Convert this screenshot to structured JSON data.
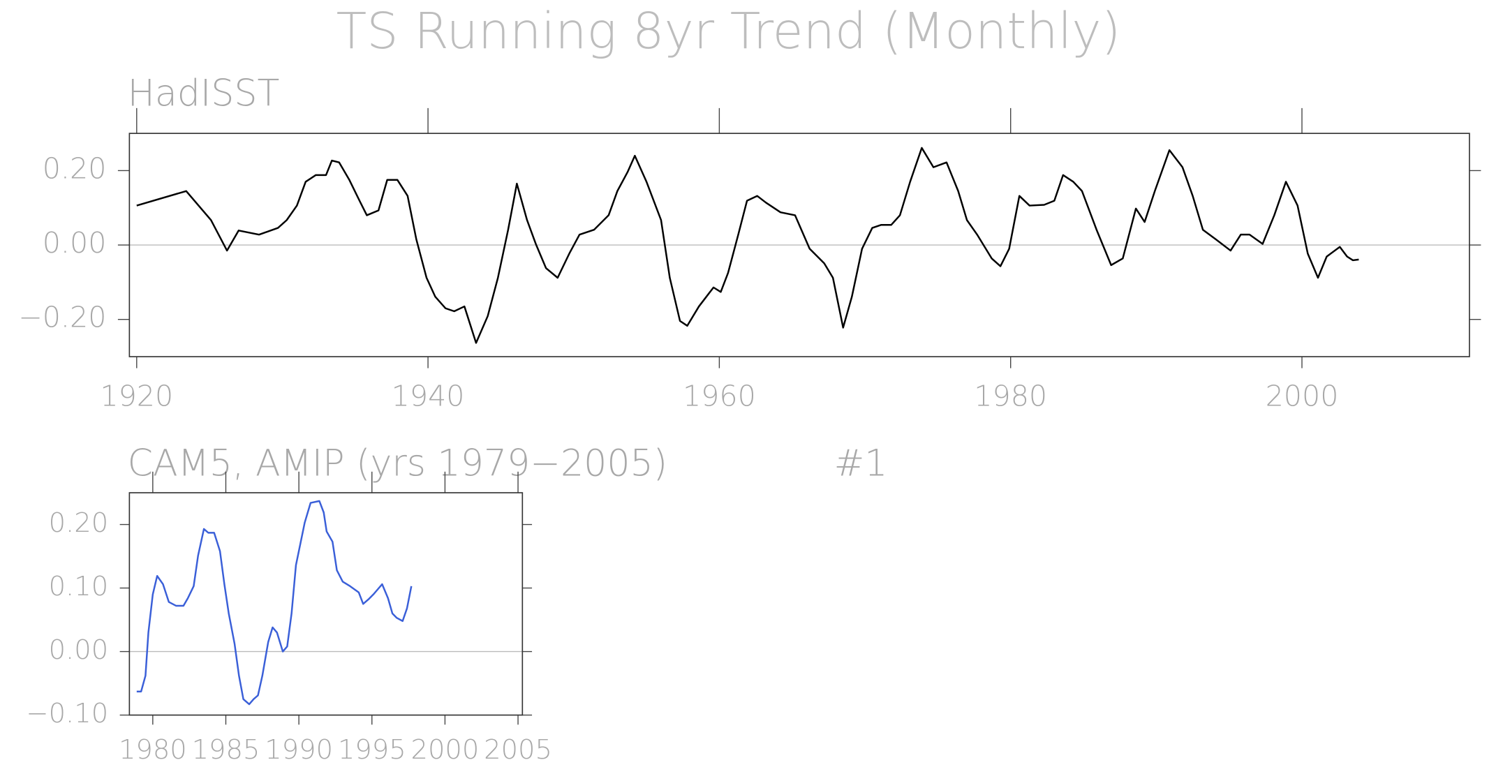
{
  "title": "TS Running 8yr Trend (Monthly)",
  "chart_data": [
    {
      "type": "line",
      "subtitle": "HadISST",
      "xlim": [
        1919.5,
        2011.5
      ],
      "xticks": [
        1920,
        1940,
        1960,
        1980,
        2000
      ],
      "ylim": [
        -0.3,
        0.3
      ],
      "yticks": [
        {
          "value": -0.2,
          "label": "−0.20"
        },
        {
          "value": 0,
          "label": "0.00"
        },
        {
          "value": 0.2,
          "label": "0.20"
        }
      ],
      "zero_line": true,
      "series": [
        {
          "color": "#000000",
          "x": [
            1920.0,
            1923.4,
            1925.1,
            1926.2,
            1927.0,
            1928.4,
            1929.7,
            1930.3,
            1931.0,
            1931.6,
            1932.3,
            1933.0,
            1933.4,
            1933.9,
            1934.6,
            1935.3,
            1935.8,
            1936.6,
            1937.2,
            1937.9,
            1938.6,
            1939.2,
            1939.9,
            1940.5,
            1941.2,
            1941.8,
            1942.5,
            1943.3,
            1944.1,
            1944.8,
            1945.5,
            1946.1,
            1946.8,
            1947.4,
            1948.1,
            1948.9,
            1949.7,
            1950.4,
            1951.4,
            1952.4,
            1953.0,
            1953.7,
            1954.2,
            1955.0,
            1956.0,
            1956.6,
            1957.3,
            1957.8,
            1958.6,
            1959.6,
            1960.1,
            1960.6,
            1961.3,
            1961.9,
            1962.6,
            1963.2,
            1964.2,
            1965.2,
            1966.2,
            1967.2,
            1967.8,
            1968.5,
            1969.1,
            1969.8,
            1970.5,
            1971.1,
            1971.8,
            1972.4,
            1973.1,
            1973.9,
            1974.7,
            1975.6,
            1976.4,
            1977.0,
            1977.7,
            1978.7,
            1979.3,
            1979.9,
            1980.6,
            1981.3,
            1982.3,
            1983.0,
            1983.6,
            1984.3,
            1984.9,
            1985.9,
            1986.9,
            1987.7,
            1988.6,
            1989.2,
            1989.9,
            1990.9,
            1991.8,
            1992.5,
            1993.2,
            1994.1,
            1995.1,
            1995.8,
            1996.4,
            1997.3,
            1998.1,
            1998.9,
            1999.7,
            2000.4,
            2001.1,
            2001.7,
            2002.6,
            2003.1,
            2003.5,
            2003.9
          ],
          "values": [
            0.106,
            0.145,
            0.067,
            -0.015,
            0.039,
            0.028,
            0.046,
            0.067,
            0.106,
            0.17,
            0.188,
            0.188,
            0.227,
            0.222,
            0.175,
            0.119,
            0.08,
            0.093,
            0.175,
            0.175,
            0.132,
            0.015,
            -0.088,
            -0.139,
            -0.17,
            -0.178,
            -0.165,
            -0.263,
            -0.191,
            -0.088,
            0.041,
            0.165,
            0.067,
            0.003,
            -0.062,
            -0.088,
            -0.023,
            0.028,
            0.041,
            0.08,
            0.145,
            0.196,
            0.24,
            0.17,
            0.067,
            -0.088,
            -0.204,
            -0.217,
            -0.165,
            -0.114,
            -0.126,
            -0.075,
            0.028,
            0.119,
            0.132,
            0.114,
            0.088,
            0.08,
            -0.01,
            -0.049,
            -0.088,
            -0.222,
            -0.139,
            -0.01,
            0.046,
            0.054,
            0.054,
            0.08,
            0.17,
            0.261,
            0.209,
            0.222,
            0.145,
            0.067,
            0.028,
            -0.036,
            -0.057,
            -0.01,
            0.132,
            0.106,
            0.108,
            0.119,
            0.188,
            0.17,
            0.145,
            0.041,
            -0.054,
            -0.036,
            0.098,
            0.062,
            0.145,
            0.255,
            0.209,
            0.132,
            0.041,
            0.015,
            -0.015,
            0.028,
            0.028,
            0.003,
            0.08,
            0.17,
            0.106,
            -0.023,
            -0.088,
            -0.031,
            -0.005,
            -0.031,
            -0.041,
            -0.039
          ]
        }
      ]
    },
    {
      "type": "line",
      "subtitle": "CAM5, AMIP (yrs 1979−2005)",
      "label": "#1",
      "xlim": [
        1978.4,
        2005.3
      ],
      "xticks": [
        1980,
        1985,
        1990,
        1995,
        2000,
        2005
      ],
      "ylim": [
        -0.1,
        0.25
      ],
      "yticks": [
        {
          "value": -0.1,
          "label": "−0.10"
        },
        {
          "value": 0,
          "label": "0.00"
        },
        {
          "value": 0.1,
          "label": "0.10"
        },
        {
          "value": 0.2,
          "label": "0.20"
        }
      ],
      "zero_line": true,
      "series": [
        {
          "color": "#3a5fd8",
          "x": [
            1978.9,
            1979.2,
            1979.5,
            1979.7,
            1980.0,
            1980.3,
            1980.7,
            1981.1,
            1981.6,
            1982.1,
            1982.4,
            1982.8,
            1983.1,
            1983.5,
            1983.8,
            1984.2,
            1984.6,
            1984.9,
            1985.2,
            1985.6,
            1985.9,
            1986.2,
            1986.6,
            1986.9,
            1987.2,
            1987.5,
            1987.9,
            1988.2,
            1988.5,
            1988.9,
            1989.2,
            1989.5,
            1989.8,
            1990.4,
            1990.8,
            1991.4,
            1991.7,
            1991.9,
            1992.3,
            1992.6,
            1993.0,
            1993.5,
            1993.8,
            1994.1,
            1994.4,
            1994.8,
            1995.1,
            1995.4,
            1995.7,
            1996.1,
            1996.4,
            1996.7,
            1997.1,
            1997.4,
            1997.7
          ],
          "values": [
            -0.063,
            -0.063,
            -0.038,
            0.03,
            0.09,
            0.119,
            0.106,
            0.078,
            0.072,
            0.072,
            0.084,
            0.103,
            0.151,
            0.193,
            0.187,
            0.187,
            0.158,
            0.106,
            0.06,
            0.012,
            -0.038,
            -0.075,
            -0.083,
            -0.075,
            -0.069,
            -0.038,
            0.015,
            0.038,
            0.03,
            0.0,
            0.008,
            0.06,
            0.136,
            0.203,
            0.234,
            0.237,
            0.219,
            0.189,
            0.173,
            0.128,
            0.11,
            0.103,
            0.098,
            0.093,
            0.075,
            0.083,
            0.09,
            0.098,
            0.106,
            0.084,
            0.06,
            0.053,
            0.048,
            0.068,
            0.103
          ]
        }
      ]
    }
  ]
}
